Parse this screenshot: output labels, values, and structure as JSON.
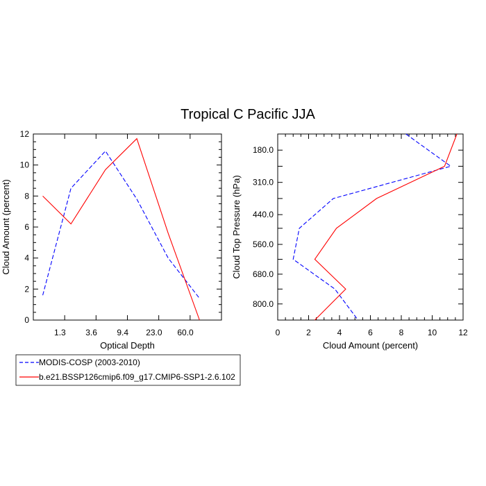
{
  "title": "Tropical C Pacific JJA",
  "legend": {
    "entries": [
      {
        "label": "MODIS-COSP (2003-2010)",
        "color": "#0000ff",
        "dash": "dashed"
      },
      {
        "label": "b.e21.BSSP126cmip6.f09_g17.CMIP6-SSP1-2.6.102",
        "color": "#ff0000",
        "dash": "solid"
      }
    ]
  },
  "chart_data": [
    {
      "type": "line",
      "xlabel": "Optical Depth",
      "ylabel": "Cloud Amount (percent)",
      "x_tick_labels": [
        "1.3",
        "3.6",
        "9.4",
        "23.0",
        "60.0"
      ],
      "ylim": [
        0,
        12
      ],
      "y_ticks": [
        0,
        2,
        4,
        6,
        8,
        10,
        12
      ],
      "grid": false,
      "series": [
        {
          "name": "MODIS-COSP (2003-2010)",
          "color": "#0000ff",
          "dash": "dashed",
          "x": [
            0.3,
            1.2,
            2.3,
            3.3,
            4.3,
            5.3
          ],
          "y": [
            1.6,
            8.5,
            10.9,
            7.8,
            4.0,
            1.4
          ]
        },
        {
          "name": "b.e21.BSSP126cmip6.f09_g17.CMIP6-SSP1-2.6.102",
          "color": "#ff0000",
          "dash": "solid",
          "x": [
            0.3,
            1.2,
            2.3,
            3.3,
            4.3,
            5.3
          ],
          "y": [
            8.0,
            6.2,
            9.7,
            11.7,
            5.6,
            0.0
          ]
        }
      ]
    },
    {
      "type": "line",
      "xlabel": "Cloud Amount (percent)",
      "ylabel": "Cloud Top Pressure (hPa)",
      "xlim": [
        0,
        12
      ],
      "x_ticks": [
        0,
        2,
        4,
        6,
        8,
        10,
        12
      ],
      "y_tick_labels": [
        "180.0",
        "310.0",
        "440.0",
        "560.0",
        "680.0",
        "800.0"
      ],
      "y_ticks": [
        180,
        310,
        440,
        560,
        680,
        800
      ],
      "ylim": [
        115,
        865
      ],
      "y_reversed": true,
      "grid": false,
      "series": [
        {
          "name": "MODIS-COSP (2003-2010)",
          "color": "#0000ff",
          "dash": "dashed",
          "x": [
            8.3,
            11.2,
            3.6,
            1.4,
            1.0,
            3.7,
            5.2
          ],
          "y": [
            115,
            245,
            375,
            495,
            620,
            740,
            865
          ]
        },
        {
          "name": "b.e21.BSSP126cmip6.f09_g17.CMIP6-SSP1-2.6.102",
          "color": "#ff0000",
          "dash": "solid",
          "x": [
            11.6,
            10.8,
            6.4,
            3.8,
            2.4,
            4.4,
            2.4
          ],
          "y": [
            115,
            245,
            375,
            495,
            620,
            740,
            865
          ]
        }
      ]
    }
  ]
}
